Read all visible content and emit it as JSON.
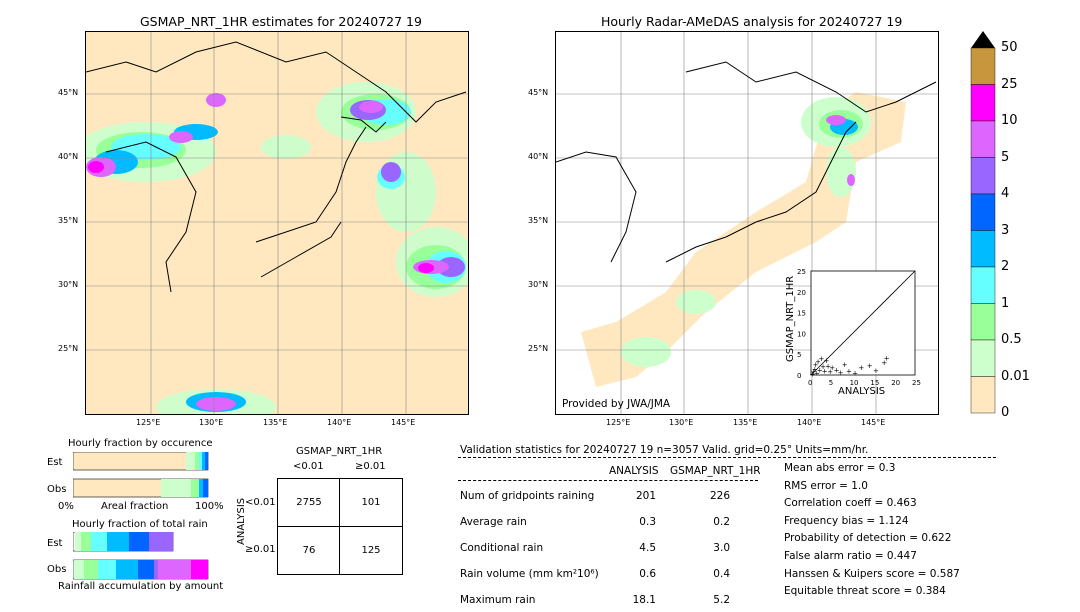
{
  "left_map": {
    "title": "GSMAP_NRT_1HR estimates for 20240727 19"
  },
  "right_map": {
    "title": "Hourly Radar-AMeDAS analysis for 20240727 19",
    "credit": "Provided by JWA/JMA"
  },
  "lat_labels": [
    "45°N",
    "40°N",
    "35°N",
    "30°N",
    "25°N"
  ],
  "lon_labels": [
    "125°E",
    "130°E",
    "135°E",
    "140°E",
    "145°E"
  ],
  "colorbar": {
    "labels": [
      "50",
      "25",
      "10",
      "5",
      "4",
      "3",
      "2",
      "1",
      "0.5",
      "0.01",
      "0"
    ],
    "colors": [
      "#c8963c",
      "#ff00ff",
      "#dd66ff",
      "#9966ff",
      "#0066ff",
      "#00bbff",
      "#66ffff",
      "#99ff99",
      "#ccffcc",
      "#ffe8c0"
    ]
  },
  "inset": {
    "ylabel": "GSMAP_NRT_1HR",
    "xlabel": "ANALYSIS",
    "ticks": [
      "0",
      "5",
      "10",
      "15",
      "20",
      "25"
    ]
  },
  "occurrence": {
    "title": "Hourly fraction by occurence",
    "row_est": "Est",
    "row_obs": "Obs",
    "x0": "0%",
    "xlabel": "Areal fraction",
    "x1": "100%"
  },
  "total_rain": {
    "title": "Hourly fraction of total rain",
    "row_est": "Est",
    "row_obs": "Obs",
    "footer": "Rainfall accumulation by amount"
  },
  "contingency": {
    "title": "GSMAP_NRT_1HR",
    "col1": "<0.01",
    "col2": "≥0.01",
    "ylabel": "ANALYSIS",
    "row1": "<0.01",
    "row2": "≥0.01",
    "values": [
      "2755",
      "101",
      "76",
      "125"
    ]
  },
  "validation": {
    "header": "Validation statistics for 20240727 19  n=3057 Valid. grid=0.25° Units=mm/hr.",
    "col_analysis": "ANALYSIS",
    "col_gsmap": "GSMAP_NRT_1HR",
    "rows": [
      {
        "label": "Num of gridpoints raining",
        "a": "201",
        "g": "226"
      },
      {
        "label": "Average rain",
        "a": "0.3",
        "g": "0.2"
      },
      {
        "label": "Conditional rain",
        "a": "4.5",
        "g": "3.0"
      },
      {
        "label": "Rain volume (mm km²10⁶)",
        "a": "0.6",
        "g": "0.4"
      },
      {
        "label": "Maximum rain",
        "a": "18.1",
        "g": "5.2"
      }
    ],
    "scores": [
      "Mean abs error =    0.3",
      "RMS error =    1.0",
      "Correlation coeff =  0.463",
      "Frequency bias =  1.124",
      "Probability of detection =  0.622",
      "False alarm ratio =  0.447",
      "Hanssen & Kuipers score =  0.587",
      "Equitable threat score =  0.384"
    ]
  },
  "chart_data": [
    {
      "type": "heatmap",
      "title": "GSMAP_NRT_1HR estimates for 20240727 19",
      "xlabel": "",
      "ylabel": "",
      "x_ticks": [
        "125°E",
        "130°E",
        "135°E",
        "140°E",
        "145°E"
      ],
      "y_ticks": [
        "45°N",
        "40°N",
        "35°N",
        "30°N",
        "25°N"
      ]
    },
    {
      "type": "heatmap",
      "title": "Hourly Radar-AMeDAS analysis for 20240727 19",
      "x_ticks": [
        "125°E",
        "130°E",
        "135°E",
        "140°E",
        "145°E"
      ],
      "y_ticks": [
        "45°N",
        "40°N",
        "35°N",
        "30°N",
        "25°N"
      ]
    },
    {
      "type": "scatter",
      "xlabel": "ANALYSIS",
      "ylabel": "GSMAP_NRT_1HR",
      "xlim": [
        0,
        25
      ],
      "ylim": [
        0,
        25
      ],
      "x": [
        0.2,
        0.5,
        0.8,
        1.0,
        1.3,
        1.6,
        2.0,
        2.4,
        2.8,
        3.2,
        3.6,
        4.0,
        4.5,
        5.0,
        6.0,
        7.0,
        8.0,
        9.0,
        10.5,
        12.0,
        14.0,
        15.5,
        17.5,
        18.1
      ],
      "y": [
        0.3,
        0.8,
        1.5,
        2.5,
        0.5,
        3.2,
        1.2,
        4.0,
        2.0,
        1.0,
        3.5,
        2.2,
        0.8,
        1.8,
        1.2,
        0.6,
        2.5,
        1.0,
        0.5,
        1.8,
        2.3,
        1.1,
        3.0,
        4.1
      ]
    }
  ]
}
